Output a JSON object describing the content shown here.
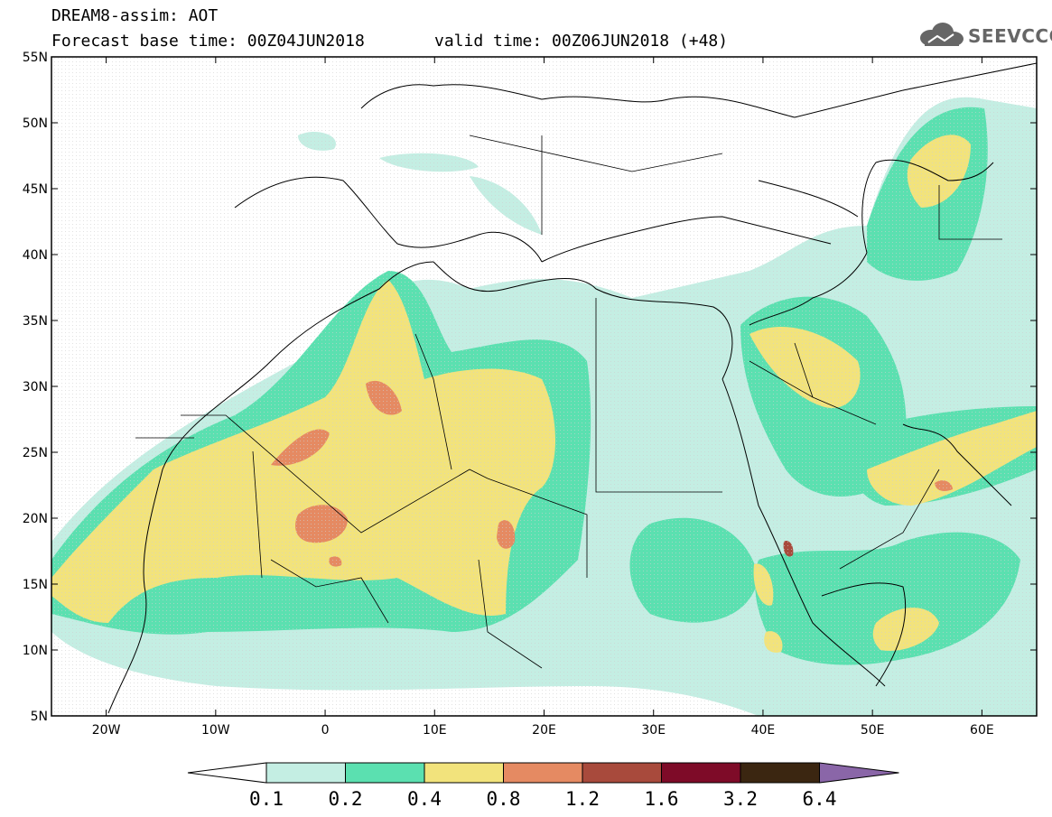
{
  "header": {
    "line1": "DREAM8-assim: AOT",
    "line2": "Forecast base time: 00Z04JUN2018",
    "valid": "valid time: 00Z06JUN2018 (+48)"
  },
  "logo": {
    "text": "SEEVCCC",
    "icon": "cloud-icon"
  },
  "map": {
    "lat_labels": [
      "55N",
      "50N",
      "45N",
      "40N",
      "35N",
      "30N",
      "25N",
      "20N",
      "15N",
      "10N",
      "5N"
    ],
    "lon_labels": [
      "20W",
      "10W",
      "0",
      "10E",
      "20E",
      "30E",
      "40E",
      "50E",
      "60E"
    ],
    "lat_range": [
      5,
      55
    ],
    "lon_range": [
      -25,
      65
    ],
    "field": "Aerosol optical thickness (AOT)"
  },
  "colorbar": {
    "labels": [
      "0.1",
      "0.2",
      "0.4",
      "0.8",
      "1.2",
      "1.6",
      "3.2",
      "6.4"
    ],
    "colors": [
      "#ffffff",
      "#c4eee3",
      "#5be0b0",
      "#f2e37c",
      "#e58a62",
      "#a84a3c",
      "#7e0b28",
      "#3b2611",
      "#8a66a8"
    ]
  }
}
